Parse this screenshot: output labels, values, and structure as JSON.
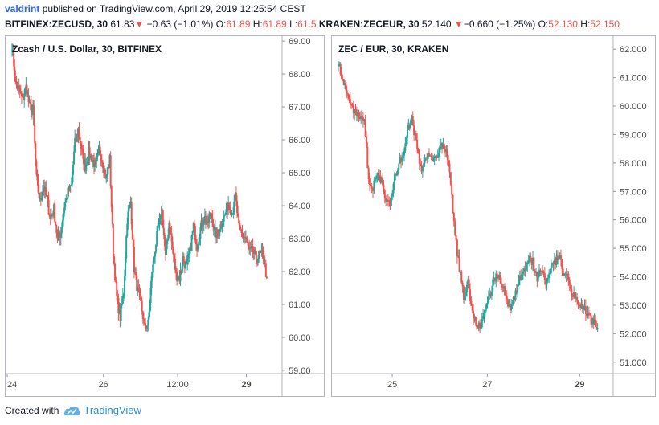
{
  "header": {
    "author": "valdrint",
    "published": "published on TradingView.com, April 29, 2019 12:25:54 CEST"
  },
  "ticker1": {
    "symbol": "BITFINEX:ZECUSD, 30",
    "last": "61.83",
    "change": "−0.63 (−1.01%)",
    "o_label": "O:",
    "o": "61.89",
    "h_label": "H:",
    "h": "61.89",
    "l_label": "L:",
    "l": "61.5"
  },
  "ticker2": {
    "symbol": "KRAKEN:ZECEUR, 30",
    "last": "52.140",
    "change": "−0.660 (−1.25%)",
    "o_label": "O:",
    "o": "52.130",
    "h_label": "H:",
    "h": "52.150"
  },
  "footer": {
    "created_with": "Created with",
    "brand": "TradingView"
  },
  "colors": {
    "up": "#26a69a",
    "down": "#ef5350",
    "grid": "#e1e3ea",
    "text": "#4a4a4a"
  },
  "chart_data": [
    {
      "type": "candlestick",
      "title": "Zcash / U.S. Dollar, 30, BITFINEX",
      "ylim": [
        58.9,
        69.1
      ],
      "yticks": [
        "59.00",
        "60.00",
        "61.00",
        "62.00",
        "63.00",
        "64.00",
        "65.00",
        "66.00",
        "67.00",
        "68.00",
        "69.00"
      ],
      "xticks": [
        {
          "label": "24",
          "pos": 0.0,
          "bold": false
        },
        {
          "label": "26",
          "pos": 0.35,
          "bold": false
        },
        {
          "label": "12:00",
          "pos": 0.62,
          "bold": false
        },
        {
          "label": "29",
          "pos": 0.87,
          "bold": true
        }
      ],
      "path": [
        68.9,
        67.7,
        67.5,
        67.2,
        67.6,
        67.0,
        66.9,
        64.8,
        64.1,
        64.6,
        64.2,
        63.6,
        63.9,
        63.0,
        63.2,
        64.0,
        64.4,
        64.6,
        65.9,
        66.3,
        65.6,
        65.2,
        65.6,
        65.4,
        65.2,
        65.7,
        65.3,
        64.8,
        65.4,
        62.6,
        61.2,
        60.6,
        61.4,
        63.6,
        64.1,
        62.1,
        61.4,
        61.0,
        60.3,
        60.4,
        61.8,
        62.7,
        63.4,
        63.8,
        62.4,
        63.5,
        62.7,
        61.9,
        61.8,
        62.4,
        62.1,
        62.6,
        63.4,
        62.8,
        63.3,
        63.7,
        63.4,
        63.8,
        63.2,
        63.1,
        63.5,
        63.7,
        64.1,
        63.8,
        64.3,
        63.3,
        63.1,
        63.0,
        62.6,
        62.6,
        62.4,
        62.5,
        62.5,
        61.8
      ]
    },
    {
      "type": "candlestick",
      "title": "ZEC / EUR, 30, KRAKEN",
      "ylim": [
        50.6,
        62.4
      ],
      "yticks": [
        "51.000",
        "52.000",
        "53.000",
        "54.000",
        "55.000",
        "56.000",
        "57.000",
        "58.000",
        "59.000",
        "60.000",
        "61.000",
        "62.000"
      ],
      "xticks": [
        {
          "label": "25",
          "pos": 0.21,
          "bold": false
        },
        {
          "label": "27",
          "pos": 0.55,
          "bold": false
        },
        {
          "label": "29",
          "pos": 0.88,
          "bold": true
        }
      ],
      "path": [
        61.6,
        60.9,
        60.4,
        60.0,
        59.8,
        59.6,
        59.4,
        57.5,
        57.1,
        57.6,
        57.3,
        56.8,
        56.5,
        57.5,
        57.9,
        58.4,
        59.1,
        59.5,
        58.8,
        57.8,
        58.1,
        58.3,
        58.0,
        58.4,
        58.6,
        58.4,
        57.4,
        55.4,
        54.3,
        53.3,
        53.8,
        52.8,
        52.2,
        52.4,
        52.7,
        53.3,
        53.9,
        54.1,
        53.6,
        53.2,
        52.9,
        53.5,
        53.9,
        54.2,
        54.7,
        54.5,
        54.0,
        54.4,
        53.9,
        54.3,
        54.5,
        54.8,
        54.2,
        54.0,
        53.5,
        53.2,
        53.0,
        52.8,
        52.6,
        52.4,
        52.2
      ]
    }
  ]
}
